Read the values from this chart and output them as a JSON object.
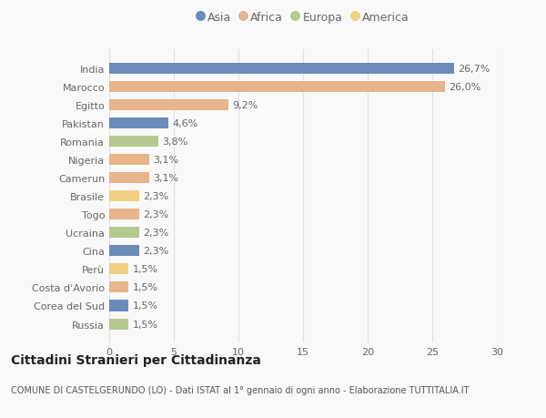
{
  "categories": [
    "India",
    "Marocco",
    "Egitto",
    "Pakistan",
    "Romania",
    "Nigeria",
    "Camerun",
    "Brasile",
    "Togo",
    "Ucraina",
    "Cina",
    "Perù",
    "Costa d'Avorio",
    "Corea del Sud",
    "Russia"
  ],
  "values": [
    26.7,
    26.0,
    9.2,
    4.6,
    3.8,
    3.1,
    3.1,
    2.3,
    2.3,
    2.3,
    2.3,
    1.5,
    1.5,
    1.5,
    1.5
  ],
  "labels": [
    "26,7%",
    "26,0%",
    "9,2%",
    "4,6%",
    "3,8%",
    "3,1%",
    "3,1%",
    "2,3%",
    "2,3%",
    "2,3%",
    "2,3%",
    "1,5%",
    "1,5%",
    "1,5%",
    "1,5%"
  ],
  "continents": [
    "Asia",
    "Africa",
    "Africa",
    "Asia",
    "Europa",
    "Africa",
    "Africa",
    "America",
    "Africa",
    "Europa",
    "Asia",
    "America",
    "Africa",
    "Asia",
    "Europa"
  ],
  "continent_colors": {
    "Asia": "#6b8cba",
    "Africa": "#e8b48a",
    "Europa": "#b5c98e",
    "America": "#f0d080"
  },
  "legend_order": [
    "Asia",
    "Africa",
    "Europa",
    "America"
  ],
  "title": "Cittadini Stranieri per Cittadinanza",
  "subtitle": "COMUNE DI CASTELGERUNDO (LO) - Dati ISTAT al 1° gennaio di ogni anno - Elaborazione TUTTITALIA.IT",
  "xlim": [
    0,
    30
  ],
  "xticks": [
    0,
    5,
    10,
    15,
    20,
    25,
    30
  ],
  "background_color": "#f9f9f9",
  "grid_color": "#e0e0e0",
  "bar_height": 0.6,
  "title_fontsize": 10,
  "subtitle_fontsize": 7,
  "label_fontsize": 8,
  "tick_fontsize": 8,
  "legend_fontsize": 9
}
